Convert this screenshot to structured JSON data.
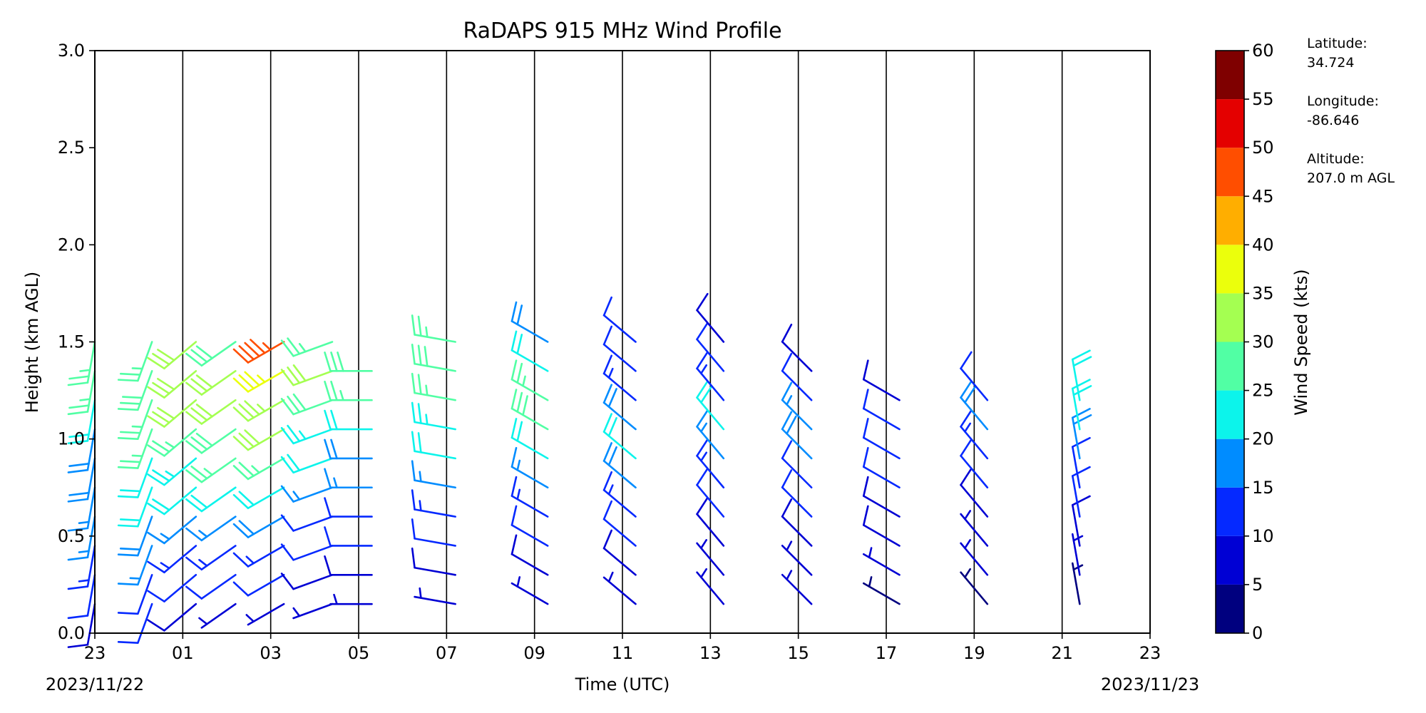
{
  "chart_data": {
    "type": "wind_barb_profile",
    "title": "RaDAPS 915 MHz Wind Profile",
    "xlabel": "Time (UTC)",
    "ylabel": "Height (km AGL)",
    "x_ticks": [
      "23",
      "01",
      "03",
      "05",
      "07",
      "09",
      "11",
      "13",
      "15",
      "17",
      "19",
      "21",
      "23"
    ],
    "x_tick_hours": [
      0,
      2,
      4,
      6,
      8,
      10,
      12,
      14,
      16,
      18,
      20,
      22,
      24
    ],
    "x_range_hours": [
      0,
      24
    ],
    "start_date_label": "2023/11/22",
    "end_date_label": "2023/11/23",
    "y_ticks": [
      "0.0",
      "0.5",
      "1.0",
      "1.5",
      "2.0",
      "2.5",
      "3.0"
    ],
    "ylim": [
      0,
      3
    ],
    "vertical_gridlines_every_hours": 2,
    "colorbar": {
      "label": "Wind Speed (kts)",
      "ticks": [
        "0",
        "5",
        "10",
        "15",
        "20",
        "25",
        "30",
        "35",
        "40",
        "45",
        "50",
        "55",
        "60"
      ],
      "range": [
        0,
        60
      ],
      "bin_colors": [
        "#00007f",
        "#0000d4",
        "#0529ff",
        "#008cff",
        "#0cf4eb",
        "#51ffa4",
        "#a4ff51",
        "#ebff0c",
        "#ffae00",
        "#ff4e00",
        "#e40000",
        "#7f0000"
      ]
    },
    "profiles": [
      {
        "hour": 0.0,
        "dir": 190,
        "speed": [
          9,
          11,
          13,
          15,
          17,
          18,
          19,
          22,
          25,
          27
        ]
      },
      {
        "hour": 1.3,
        "dir": 200,
        "speed": [
          10,
          12,
          15,
          18,
          20,
          22,
          25,
          27,
          28,
          26
        ]
      },
      {
        "hour": 2.3,
        "dir": 230,
        "speed": [
          8,
          11,
          14,
          17,
          20,
          24,
          27,
          30,
          32,
          30
        ]
      },
      {
        "hour": 3.2,
        "dir": 235,
        "speed": [
          7,
          10,
          13,
          17,
          21,
          25,
          29,
          32,
          31,
          28
        ]
      },
      {
        "hour": 4.3,
        "dir": 240,
        "speed": [
          6,
          10,
          14,
          18,
          22,
          26,
          30,
          33,
          37,
          45
        ]
      },
      {
        "hour": 5.4,
        "dir": 250,
        "speed": [
          6,
          8,
          10,
          12,
          15,
          20,
          24,
          28,
          30,
          27
        ]
      },
      {
        "hour": 6.3,
        "dir": 270,
        "speed": [
          6,
          8,
          10,
          12,
          16,
          18,
          22,
          26,
          28
        ]
      },
      {
        "hour": 8.2,
        "dir": 280,
        "speed": [
          7,
          9,
          11,
          13,
          16,
          20,
          24,
          27,
          29,
          25
        ]
      },
      {
        "hour": 10.3,
        "dir": 300,
        "speed": [
          7,
          9,
          11,
          13,
          16,
          21,
          28,
          25,
          20,
          18
        ]
      },
      {
        "hour": 12.3,
        "dir": 310,
        "speed": [
          7,
          9,
          12,
          14,
          18,
          22,
          18,
          14,
          12,
          10
        ]
      },
      {
        "hour": 14.3,
        "dir": 320,
        "speed": [
          5,
          7,
          9,
          11,
          13,
          17,
          21,
          14,
          10,
          8
        ]
      },
      {
        "hour": 16.3,
        "dir": 315,
        "speed": [
          5,
          7,
          9,
          10,
          12,
          18,
          15,
          11,
          9
        ]
      },
      {
        "hour": 18.3,
        "dir": 300,
        "speed": [
          4,
          6,
          8,
          9,
          10,
          12,
          10,
          8
        ]
      },
      {
        "hour": 20.3,
        "dir": 320,
        "speed": [
          3,
          5,
          7,
          9,
          11,
          14,
          18,
          12
        ]
      },
      {
        "hour": 22.4,
        "dir": 350,
        "speed": [
          4,
          6,
          8,
          10,
          12,
          18,
          22,
          20
        ]
      }
    ]
  },
  "site_info": [
    {
      "label": "Latitude:",
      "value": "34.724"
    },
    {
      "label": "Longitude:",
      "value": "-86.646"
    },
    {
      "label": "Altitude:",
      "value": "207.0 m AGL"
    }
  ]
}
